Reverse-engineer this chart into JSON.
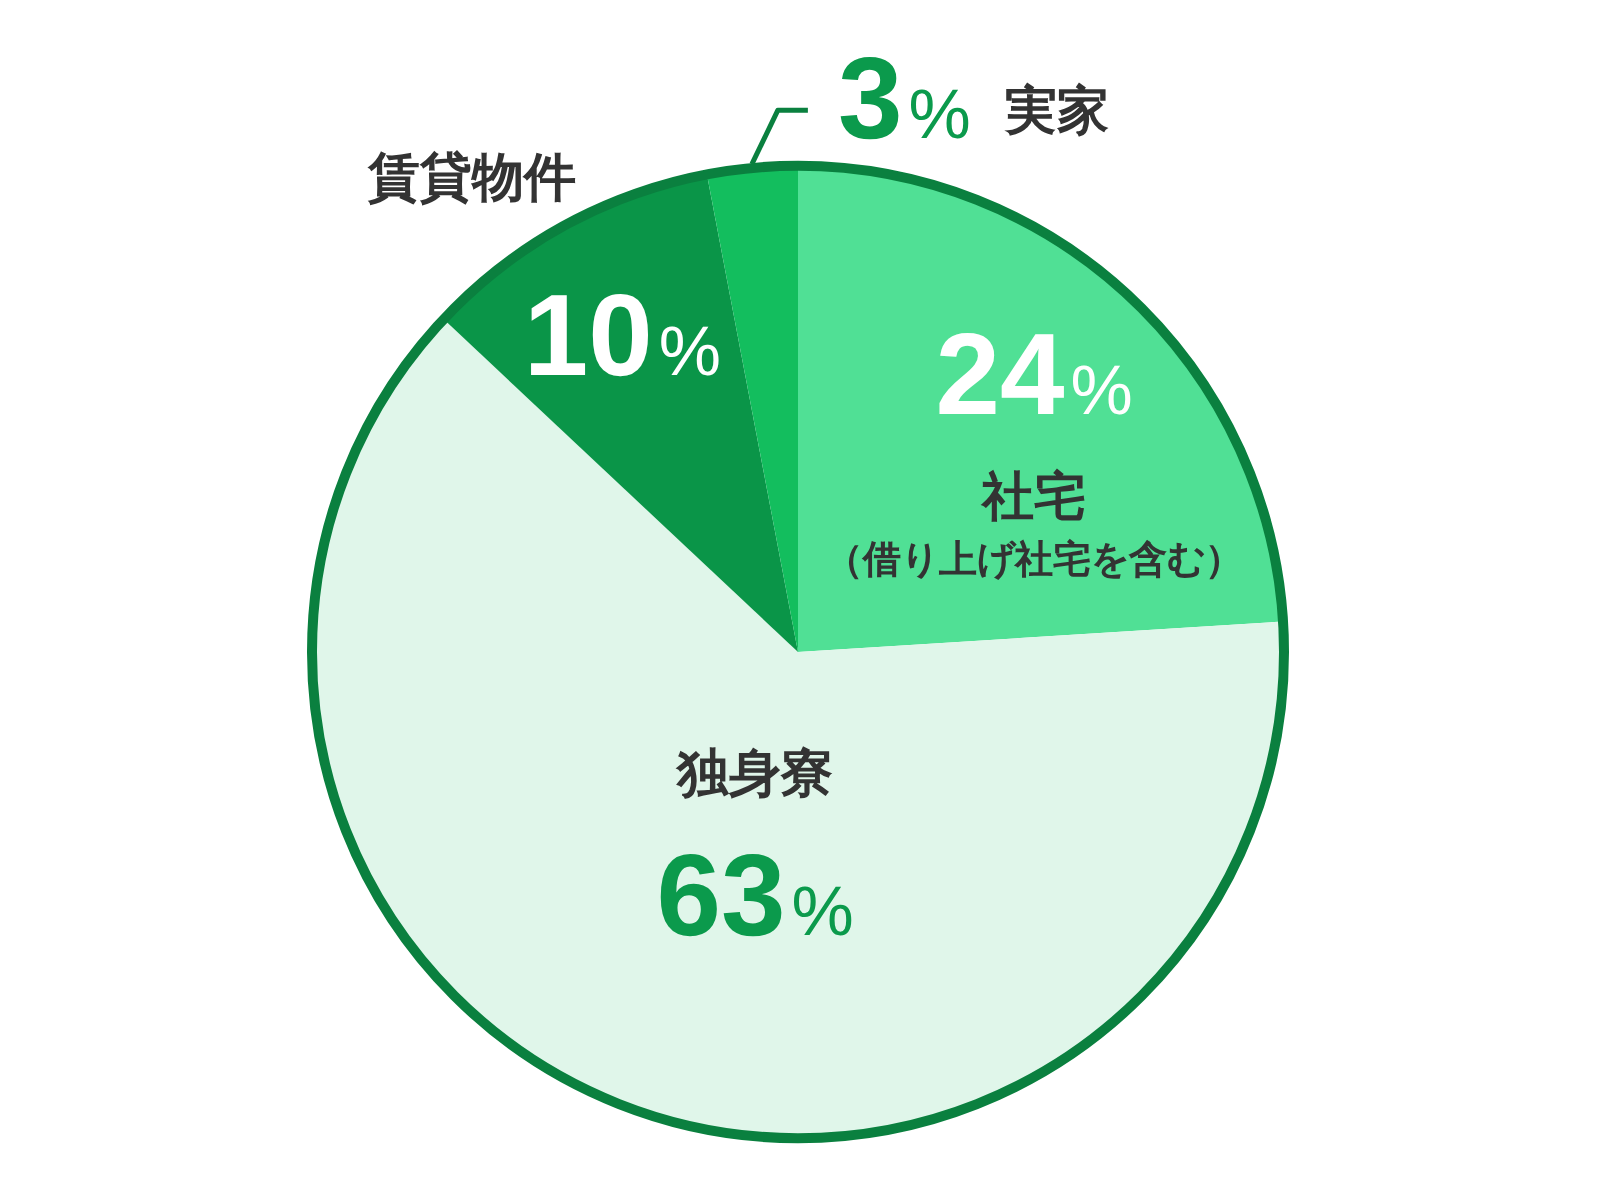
{
  "chart_data": {
    "type": "pie",
    "categories": [
      "社宅",
      "独身寮",
      "賃貸物件",
      "実家"
    ],
    "values": [
      24,
      63,
      10,
      3
    ],
    "colors": [
      "#50e095",
      "#e0f6ea",
      "#0a9548",
      "#13be5e"
    ],
    "value_labels": [
      "24%",
      "63%",
      "10%",
      "3%"
    ],
    "annotations": [
      {
        "text": "（借り上げ社宅を含む）",
        "x": "社宅"
      }
    ]
  }
}
